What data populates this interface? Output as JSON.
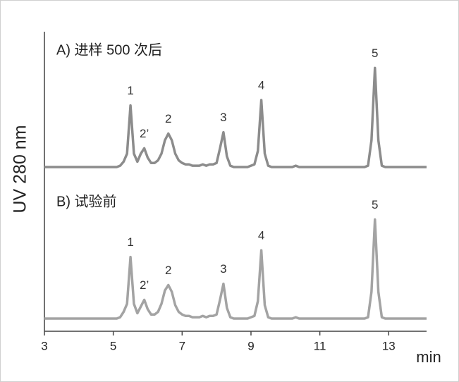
{
  "chart_data": {
    "type": "line",
    "ylabel": "UV 280 nm",
    "xlabel": "min",
    "xlim": [
      3,
      14.1
    ],
    "xticks": [
      3,
      5,
      7,
      9,
      11,
      13
    ],
    "ylim": [
      0,
      100
    ],
    "x": [
      3.0,
      3.1,
      3.2,
      3.3,
      3.4,
      3.5,
      3.6,
      3.7,
      3.8,
      3.9,
      4.0,
      4.1,
      4.2,
      4.3,
      4.4,
      4.5,
      4.6,
      4.7,
      4.8,
      4.9,
      5.0,
      5.1,
      5.2,
      5.3,
      5.4,
      5.5,
      5.6,
      5.7,
      5.8,
      5.9,
      6.0,
      6.1,
      6.2,
      6.3,
      6.4,
      6.5,
      6.6,
      6.7,
      6.8,
      6.9,
      7.0,
      7.1,
      7.2,
      7.3,
      7.4,
      7.5,
      7.6,
      7.7,
      7.8,
      7.9,
      8.0,
      8.1,
      8.2,
      8.3,
      8.4,
      8.5,
      8.6,
      8.7,
      8.8,
      8.9,
      9.0,
      9.1,
      9.2,
      9.3,
      9.4,
      9.5,
      9.6,
      9.7,
      9.8,
      9.9,
      10.0,
      10.1,
      10.2,
      10.3,
      10.4,
      10.5,
      10.6,
      10.7,
      10.8,
      10.9,
      11.0,
      11.1,
      11.2,
      11.3,
      11.4,
      11.5,
      11.6,
      11.7,
      11.8,
      11.9,
      12.0,
      12.1,
      12.2,
      12.3,
      12.4,
      12.5,
      12.6,
      12.7,
      12.8,
      12.9,
      13.0,
      13.1,
      13.2,
      13.3,
      13.4,
      13.5,
      13.6,
      13.7,
      13.8,
      13.9,
      14.0,
      14.1
    ],
    "series": [
      {
        "name": "A) 进样 500 次后",
        "color": "#8c8c8c",
        "values": [
          0,
          0,
          0,
          0,
          0,
          0,
          0,
          0,
          0,
          0,
          0,
          0,
          0,
          0,
          0,
          0,
          0,
          0,
          0,
          0,
          0,
          0,
          1,
          4,
          10,
          46,
          10,
          4,
          10,
          14,
          7,
          3,
          3,
          5,
          10,
          20,
          25,
          20,
          10,
          5,
          3,
          2,
          2,
          1,
          1,
          1,
          2,
          1,
          2,
          2,
          3,
          14,
          26,
          8,
          1,
          0,
          0,
          0,
          0,
          0,
          1,
          2,
          12,
          50,
          10,
          1,
          0,
          0,
          0,
          0,
          0,
          0,
          0,
          1,
          0,
          0,
          0,
          0,
          0,
          0,
          0,
          0,
          0,
          0,
          0,
          0,
          0,
          0,
          0,
          0,
          0,
          0,
          0,
          0,
          1,
          20,
          74,
          20,
          1,
          0,
          0,
          0,
          0,
          0,
          0,
          0,
          0,
          0,
          0,
          0,
          0,
          0
        ],
        "annotations": [
          {
            "text": "1",
            "x": 5.5,
            "y": 46
          },
          {
            "text": "2’",
            "x": 5.9,
            "y": 14
          },
          {
            "text": "2",
            "x": 6.6,
            "y": 25
          },
          {
            "text": "3",
            "x": 8.2,
            "y": 26
          },
          {
            "text": "4",
            "x": 9.3,
            "y": 50
          },
          {
            "text": "5",
            "x": 12.6,
            "y": 74
          }
        ]
      },
      {
        "name": "B) 试验前",
        "color": "#a3a3a3",
        "values": [
          0,
          0,
          0,
          0,
          0,
          0,
          0,
          0,
          0,
          0,
          0,
          0,
          0,
          0,
          0,
          0,
          0,
          0,
          0,
          0,
          0,
          0,
          1,
          5,
          11,
          46,
          11,
          4,
          9,
          14,
          7,
          3,
          3,
          5,
          11,
          21,
          25,
          20,
          10,
          5,
          3,
          2,
          2,
          1,
          1,
          1,
          2,
          1,
          2,
          2,
          3,
          14,
          26,
          8,
          1,
          0,
          0,
          0,
          0,
          0,
          1,
          2,
          13,
          51,
          10,
          1,
          0,
          0,
          0,
          0,
          0,
          0,
          0,
          1,
          0,
          0,
          0,
          0,
          0,
          0,
          0,
          0,
          0,
          0,
          0,
          0,
          0,
          0,
          0,
          0,
          0,
          0,
          0,
          0,
          1,
          20,
          74,
          20,
          1,
          0,
          0,
          0,
          0,
          0,
          0,
          0,
          0,
          0,
          0,
          0,
          0,
          0
        ],
        "annotations": [
          {
            "text": "1",
            "x": 5.5,
            "y": 46
          },
          {
            "text": "2’",
            "x": 5.9,
            "y": 14
          },
          {
            "text": "2",
            "x": 6.6,
            "y": 25
          },
          {
            "text": "3",
            "x": 8.2,
            "y": 26
          },
          {
            "text": "4",
            "x": 9.3,
            "y": 51
          },
          {
            "text": "5",
            "x": 12.6,
            "y": 74
          }
        ]
      }
    ]
  }
}
